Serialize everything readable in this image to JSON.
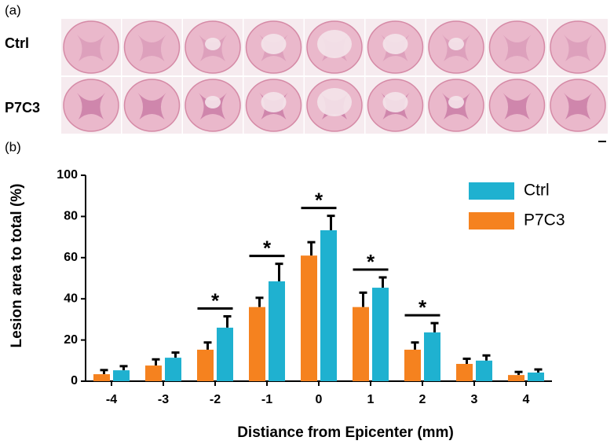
{
  "panel_labels": {
    "a": "(a)",
    "b": "(b)"
  },
  "row_labels": [
    "Ctrl",
    "P7C3"
  ],
  "chart_data": {
    "type": "bar",
    "categories": [
      "-4",
      "-3",
      "-2",
      "-1",
      "0",
      "1",
      "2",
      "3",
      "4"
    ],
    "series": [
      {
        "name": "P7C3",
        "color": "#f5821f",
        "values": [
          3.4,
          7.6,
          15.3,
          36,
          61,
          36,
          15.3,
          8.4,
          3
        ],
        "errors": [
          2,
          3,
          3.5,
          4.5,
          6.5,
          7,
          3.5,
          2.5,
          1.5
        ]
      },
      {
        "name": "Ctrl",
        "color": "#1fb1d0",
        "values": [
          5.3,
          11.4,
          26,
          48.5,
          73.3,
          45.4,
          23.7,
          10,
          4.2
        ],
        "errors": [
          2,
          2.5,
          5.5,
          8.5,
          7,
          5,
          4.5,
          2.5,
          1.5
        ]
      }
    ],
    "legend_order": [
      1,
      0
    ],
    "ylim": [
      0,
      100
    ],
    "yticks": [
      0,
      20,
      40,
      60,
      80,
      100
    ],
    "y_label": "Lesion area to total (%)",
    "x_label": "Distiance from Epicenter (mm)",
    "annotations": [
      {
        "x": "-2",
        "text": "*"
      },
      {
        "x": "-1",
        "text": "*"
      },
      {
        "x": "0",
        "text": "*"
      },
      {
        "x": "1",
        "text": "*"
      },
      {
        "x": "2",
        "text": "*"
      }
    ]
  }
}
